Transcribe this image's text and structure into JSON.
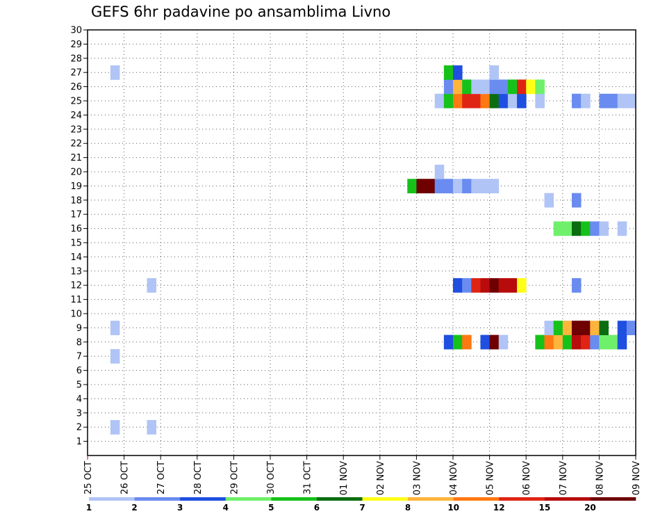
{
  "chart_data": {
    "type": "heatmap",
    "title": "GEFS 6hr padavine po ansamblima Livno",
    "xlabel": "",
    "ylabel": "",
    "x_tick_labels": [
      "25 OCT",
      "26 OCT",
      "27 OCT",
      "28 OCT",
      "29 OCT",
      "30 OCT",
      "31 OCT",
      "01 NOV",
      "02 NOV",
      "03 NOV",
      "04 NOV",
      "05 NOV",
      "06 NOV",
      "07 NOV",
      "08 NOV",
      "09 NOV"
    ],
    "y_tick_labels": [
      "1",
      "2",
      "3",
      "4",
      "5",
      "6",
      "7",
      "8",
      "9",
      "10",
      "11",
      "12",
      "13",
      "14",
      "15",
      "16",
      "17",
      "18",
      "19",
      "20",
      "21",
      "22",
      "23",
      "24",
      "25",
      "26",
      "27",
      "28",
      "29",
      "30"
    ],
    "x_unit": "6-hour step from 25 OCT 00Z",
    "xlim": [
      0,
      60
    ],
    "ylim": [
      0,
      30
    ],
    "grid": true,
    "colorbar": {
      "tick_labels": [
        "1",
        "2",
        "3",
        "4",
        "5",
        "6",
        "7",
        "8",
        "10",
        "12",
        "15",
        "20"
      ],
      "colors": [
        "#b0c4f5",
        "#6a8cf0",
        "#1f4fe0",
        "#6ef06a",
        "#16c21a",
        "#0a6e10",
        "#ffff18",
        "#ffb43c",
        "#ff7812",
        "#e02414",
        "#b80c0c",
        "#6e0000"
      ]
    },
    "cells": [
      [
        2.5,
        27,
        1
      ],
      [
        2.5,
        9,
        1
      ],
      [
        2.5,
        7,
        1
      ],
      [
        2.5,
        2,
        1
      ],
      [
        6.5,
        12,
        1
      ],
      [
        6.5,
        2,
        1
      ],
      [
        35,
        19,
        5
      ],
      [
        36,
        19,
        12
      ],
      [
        37,
        19,
        12
      ],
      [
        38,
        19,
        2
      ],
      [
        39,
        19,
        2
      ],
      [
        38,
        20,
        1
      ],
      [
        40,
        19,
        1
      ],
      [
        41,
        19,
        2
      ],
      [
        42,
        19,
        1
      ],
      [
        43,
        19,
        1
      ],
      [
        44,
        19,
        1
      ],
      [
        38,
        25,
        1
      ],
      [
        39,
        25,
        5
      ],
      [
        40,
        25,
        9
      ],
      [
        41,
        25,
        10
      ],
      [
        42,
        25,
        10
      ],
      [
        43,
        25,
        9
      ],
      [
        44,
        25,
        6
      ],
      [
        45,
        25,
        3
      ],
      [
        46,
        25,
        1
      ],
      [
        47,
        25,
        3
      ],
      [
        49,
        25,
        1
      ],
      [
        53,
        25,
        2
      ],
      [
        54,
        25,
        1
      ],
      [
        56,
        25,
        2
      ],
      [
        57,
        25,
        2
      ],
      [
        58,
        25,
        1
      ],
      [
        59,
        25,
        1
      ],
      [
        39,
        26,
        2
      ],
      [
        40,
        26,
        8
      ],
      [
        41,
        26,
        5
      ],
      [
        42,
        26,
        1
      ],
      [
        43,
        26,
        1
      ],
      [
        44,
        26,
        2
      ],
      [
        45,
        26,
        2
      ],
      [
        46,
        26,
        5
      ],
      [
        47,
        26,
        10
      ],
      [
        48,
        26,
        7
      ],
      [
        49,
        26,
        4
      ],
      [
        39,
        27,
        5
      ],
      [
        40,
        27,
        3
      ],
      [
        44,
        27,
        1
      ],
      [
        39,
        8,
        3
      ],
      [
        40,
        8,
        5
      ],
      [
        41,
        8,
        9
      ],
      [
        43,
        8,
        3
      ],
      [
        44,
        8,
        12
      ],
      [
        45,
        8,
        1
      ],
      [
        40,
        12,
        3
      ],
      [
        41,
        12,
        2
      ],
      [
        42,
        12,
        10
      ],
      [
        43,
        12,
        11
      ],
      [
        44,
        12,
        12
      ],
      [
        45,
        12,
        11
      ],
      [
        46,
        12,
        11
      ],
      [
        47,
        12,
        7
      ],
      [
        49,
        8,
        5
      ],
      [
        50,
        8,
        9
      ],
      [
        51,
        8,
        8
      ],
      [
        52,
        8,
        5
      ],
      [
        53,
        8,
        11
      ],
      [
        54,
        8,
        10
      ],
      [
        55,
        8,
        2
      ],
      [
        56,
        8,
        4
      ],
      [
        57,
        8,
        4
      ],
      [
        58,
        8,
        3
      ],
      [
        50,
        9,
        1
      ],
      [
        51,
        9,
        5
      ],
      [
        52,
        9,
        8
      ],
      [
        53,
        9,
        12
      ],
      [
        54,
        9,
        12
      ],
      [
        55,
        9,
        8
      ],
      [
        56,
        9,
        6
      ],
      [
        58,
        9,
        3
      ],
      [
        59,
        9,
        2
      ],
      [
        51,
        16,
        4
      ],
      [
        52,
        16,
        4
      ],
      [
        53,
        16,
        6
      ],
      [
        54,
        16,
        5
      ],
      [
        55,
        16,
        2
      ],
      [
        56,
        16,
        1
      ],
      [
        58,
        16,
        1
      ],
      [
        50,
        18,
        1
      ],
      [
        53,
        18,
        2
      ],
      [
        53,
        12,
        2
      ]
    ]
  }
}
